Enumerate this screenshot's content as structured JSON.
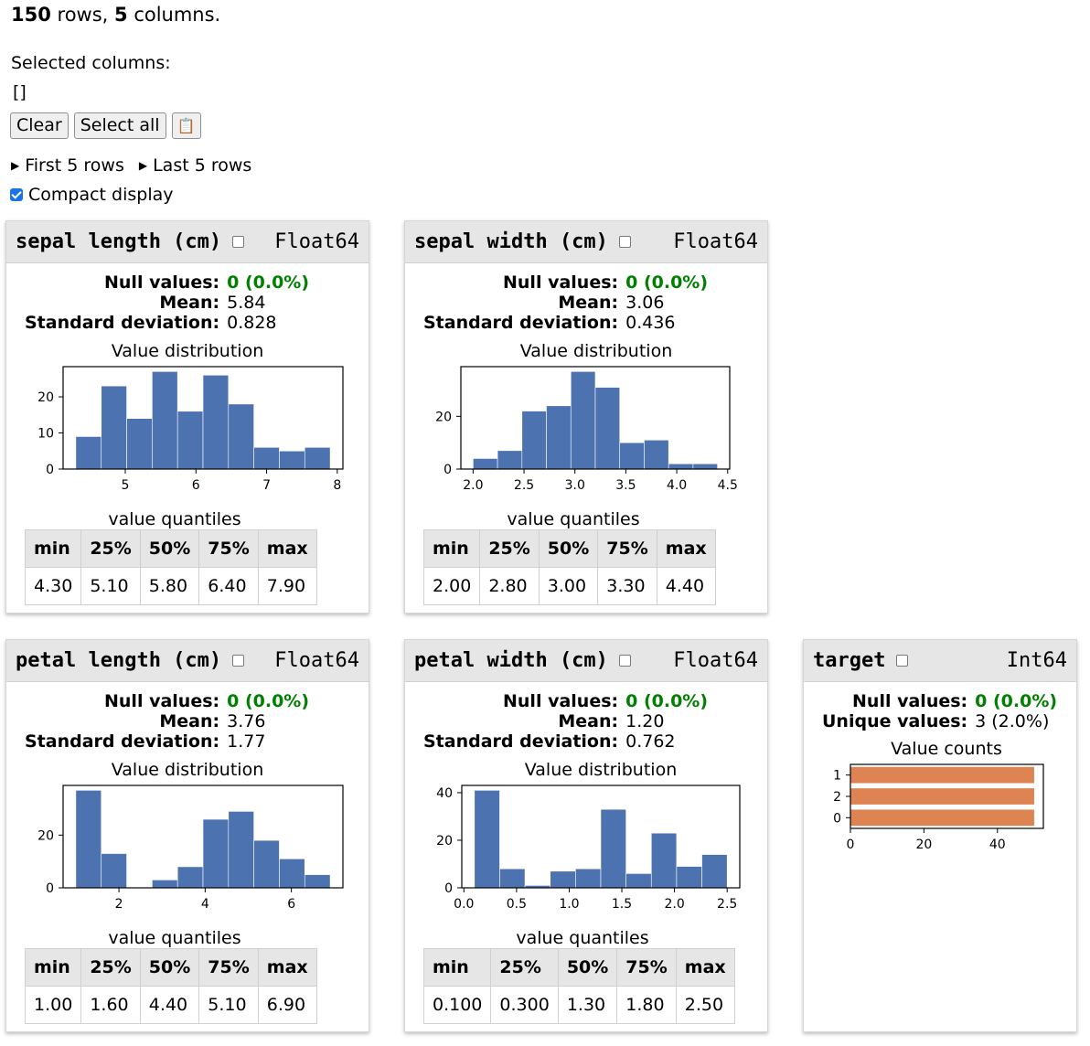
{
  "summary": {
    "rows": "150",
    "rows_suffix": " rows, ",
    "cols": "5",
    "cols_suffix": " columns."
  },
  "selection": {
    "label": "Selected columns:",
    "value": "[]"
  },
  "buttons": {
    "clear": "Clear",
    "select_all": "Select all",
    "copy_icon": "clipboard-icon",
    "copy_glyph": "📋"
  },
  "details": {
    "first": "First 5 rows",
    "last": "Last 5 rows"
  },
  "compact": {
    "label": "Compact display",
    "checked": true
  },
  "colors": {
    "histogram": "#4c72b0",
    "counts": "#dd8452",
    "null_ok": "#008000"
  },
  "labels": {
    "null": "Null values:",
    "mean": "Mean:",
    "std": "Standard deviation:",
    "unique": "Unique values:",
    "distribution": "Value distribution",
    "counts": "Value counts",
    "quantiles": "value quantiles",
    "q_headers": [
      "min",
      "25%",
      "50%",
      "75%",
      "max"
    ]
  },
  "columns": [
    {
      "name": "sepal length (cm)",
      "dtype": "Float64",
      "null": "0 (0.0%)",
      "mean": "5.84",
      "std": "0.828",
      "quantiles": [
        "4.30",
        "5.10",
        "5.80",
        "6.40",
        "7.90"
      ],
      "chart_data": {
        "type": "bar",
        "title": "Value distribution",
        "bin_edges": [
          4.3,
          4.66,
          5.02,
          5.38,
          5.74,
          6.1,
          6.46,
          6.82,
          7.18,
          7.54,
          7.9
        ],
        "values": [
          9,
          23,
          14,
          27,
          16,
          26,
          18,
          6,
          5,
          6
        ],
        "xlim": [
          4.12,
          8.08
        ],
        "ylim": [
          0,
          28.35
        ],
        "xticks": [
          5,
          6,
          7,
          8
        ],
        "xtick_labels": [
          "5",
          "6",
          "7",
          "8"
        ],
        "yticks": [
          0,
          10,
          20
        ],
        "ytick_labels": [
          "0",
          "10",
          "20"
        ]
      }
    },
    {
      "name": "sepal width (cm)",
      "dtype": "Float64",
      "null": "0 (0.0%)",
      "mean": "3.06",
      "std": "0.436",
      "quantiles": [
        "2.00",
        "2.80",
        "3.00",
        "3.30",
        "4.40"
      ],
      "chart_data": {
        "type": "bar",
        "title": "Value distribution",
        "bin_edges": [
          2.0,
          2.24,
          2.48,
          2.72,
          2.96,
          3.2,
          3.44,
          3.68,
          3.92,
          4.16,
          4.4
        ],
        "values": [
          4,
          7,
          22,
          24,
          37,
          31,
          10,
          11,
          2,
          2
        ],
        "xlim": [
          1.88,
          4.52
        ],
        "ylim": [
          0,
          38.85
        ],
        "xticks": [
          2.0,
          2.5,
          3.0,
          3.5,
          4.0,
          4.5
        ],
        "xtick_labels": [
          "2.0",
          "2.5",
          "3.0",
          "3.5",
          "4.0",
          "4.5"
        ],
        "yticks": [
          0,
          20
        ],
        "ytick_labels": [
          "0",
          "20"
        ]
      }
    },
    {
      "name": "petal length (cm)",
      "dtype": "Float64",
      "null": "0 (0.0%)",
      "mean": "3.76",
      "std": "1.77",
      "quantiles": [
        "1.00",
        "1.60",
        "4.40",
        "5.10",
        "6.90"
      ],
      "chart_data": {
        "type": "bar",
        "title": "Value distribution",
        "bin_edges": [
          1.0,
          1.59,
          2.18,
          2.77,
          3.36,
          3.95,
          4.54,
          5.13,
          5.72,
          6.31,
          6.9
        ],
        "values": [
          37,
          13,
          0,
          3,
          8,
          26,
          29,
          18,
          11,
          5
        ],
        "xlim": [
          0.705,
          7.195
        ],
        "ylim": [
          0,
          38.85
        ],
        "xticks": [
          2,
          4,
          6
        ],
        "xtick_labels": [
          "2",
          "4",
          "6"
        ],
        "yticks": [
          0,
          20
        ],
        "ytick_labels": [
          "0",
          "20"
        ]
      }
    },
    {
      "name": "petal width (cm)",
      "dtype": "Float64",
      "null": "0 (0.0%)",
      "mean": "1.20",
      "std": "0.762",
      "quantiles": [
        "0.100",
        "0.300",
        "1.30",
        "1.80",
        "2.50"
      ],
      "chart_data": {
        "type": "bar",
        "title": "Value distribution",
        "bin_edges": [
          0.1,
          0.34,
          0.58,
          0.82,
          1.06,
          1.3,
          1.54,
          1.78,
          2.02,
          2.26,
          2.5
        ],
        "values": [
          41,
          8,
          1,
          7,
          8,
          33,
          6,
          23,
          9,
          14
        ],
        "xlim": [
          -0.02,
          2.62
        ],
        "ylim": [
          0,
          43.05
        ],
        "xticks": [
          0.0,
          0.5,
          1.0,
          1.5,
          2.0,
          2.5
        ],
        "xtick_labels": [
          "0.0",
          "0.5",
          "1.0",
          "1.5",
          "2.0",
          "2.5"
        ],
        "yticks": [
          0,
          20,
          40
        ],
        "ytick_labels": [
          "0",
          "20",
          "40"
        ]
      }
    },
    {
      "name": "target",
      "dtype": "Int64",
      "null": "0 (0.0%)",
      "unique": "3 (2.0%)",
      "chart_data": {
        "type": "bar",
        "orientation": "horizontal",
        "title": "Value counts",
        "categories": [
          "1",
          "2",
          "0"
        ],
        "values": [
          50,
          50,
          50
        ],
        "xlim": [
          0,
          52.5
        ],
        "xticks": [
          0,
          20,
          40
        ],
        "xtick_labels": [
          "0",
          "20",
          "40"
        ]
      }
    }
  ]
}
